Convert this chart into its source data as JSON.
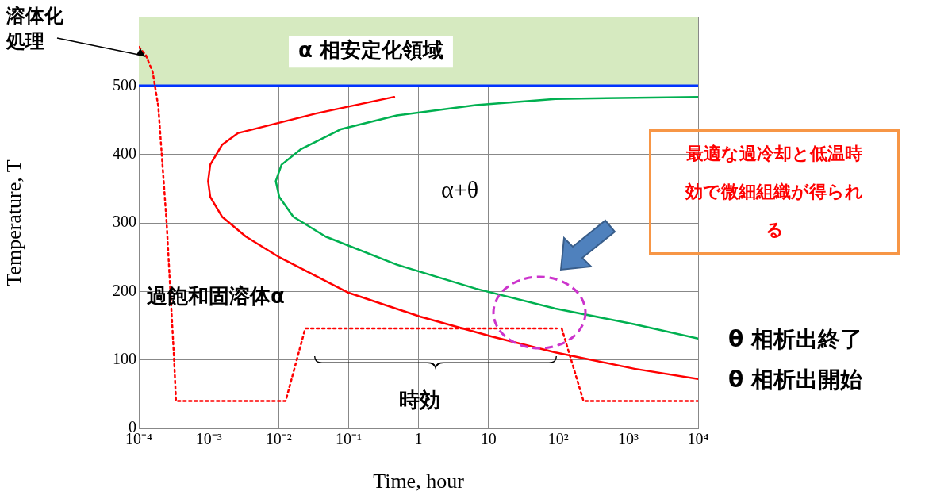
{
  "chart_data": {
    "type": "line",
    "xlabel": "Time, hour",
    "ylabel": "Temperature, T",
    "log": "x",
    "xlim": [
      0.0001,
      10000
    ],
    "xticks": [
      {
        "value": 0.0001,
        "label": "10⁻⁴"
      },
      {
        "value": 0.001,
        "label": "10⁻³"
      },
      {
        "value": 0.01,
        "label": "10⁻²"
      },
      {
        "value": 0.1,
        "label": "10⁻¹"
      },
      1,
      10,
      {
        "value": 100,
        "label": "10²"
      },
      {
        "value": 1000,
        "label": "10³"
      },
      {
        "value": 10000,
        "label": "10⁴"
      }
    ],
    "ylim": [
      0,
      600
    ],
    "yticks": [
      0,
      100,
      200,
      300,
      400,
      500
    ],
    "grid": true,
    "legend": false,
    "marker": "none",
    "series": [
      {
        "name": "θ 相析出終了",
        "color": "#00b050",
        "x": [
          10000,
          91,
          6.6,
          0.49,
          0.079,
          0.021,
          0.011,
          0.0091,
          0.0102,
          0.0162,
          0.047,
          0.49,
          6.6,
          91,
          1230,
          10000
        ],
        "values": [
          484,
          481,
          472,
          457,
          437,
          408,
          385,
          361,
          338,
          309,
          280,
          239,
          204,
          175,
          152,
          131
        ]
      },
      {
        "name": "θ 相析出開始",
        "color": "#ff0000",
        "x": [
          0.45,
          0.035,
          0.0026,
          0.00155,
          0.00105,
          0.00098,
          0.00105,
          0.00155,
          0.0034,
          0.0098,
          0.1,
          1.07,
          11.2,
          91,
          1230,
          10000
        ],
        "values": [
          484,
          460,
          431,
          414,
          385,
          361,
          338,
          309,
          280,
          251,
          198,
          163,
          134,
          111,
          87,
          72
        ]
      },
      {
        "color": "#ff0000",
        "line_style": "dotted",
        "x": [
          0.0001,
          0.000126,
          0.000158,
          0.00019,
          0.00025,
          0.00032,
          0.00034,
          0.0126,
          0.024,
          95,
          null,
          112,
          229,
          10000
        ],
        "values": [
          557,
          545,
          520,
          470,
          300,
          100,
          40,
          40,
          146,
          146,
          null,
          146,
          40,
          40
        ]
      }
    ],
    "ref_lines": [
      {
        "axis": "y",
        "value": 500,
        "color": "#0033ff"
      }
    ],
    "bands": [
      {
        "axis": "y",
        "from": 500,
        "to": 600,
        "label": "α 相安定化領域",
        "color": "#d6eac0"
      }
    ],
    "annotations": [
      {
        "text": "溶体化処理",
        "x": 0.000126,
        "y": 542
      },
      "α+θ",
      "過飽和固溶体α",
      "時効",
      "最適な過冷却と低温時効で微細組織が得られる"
    ]
  }
}
